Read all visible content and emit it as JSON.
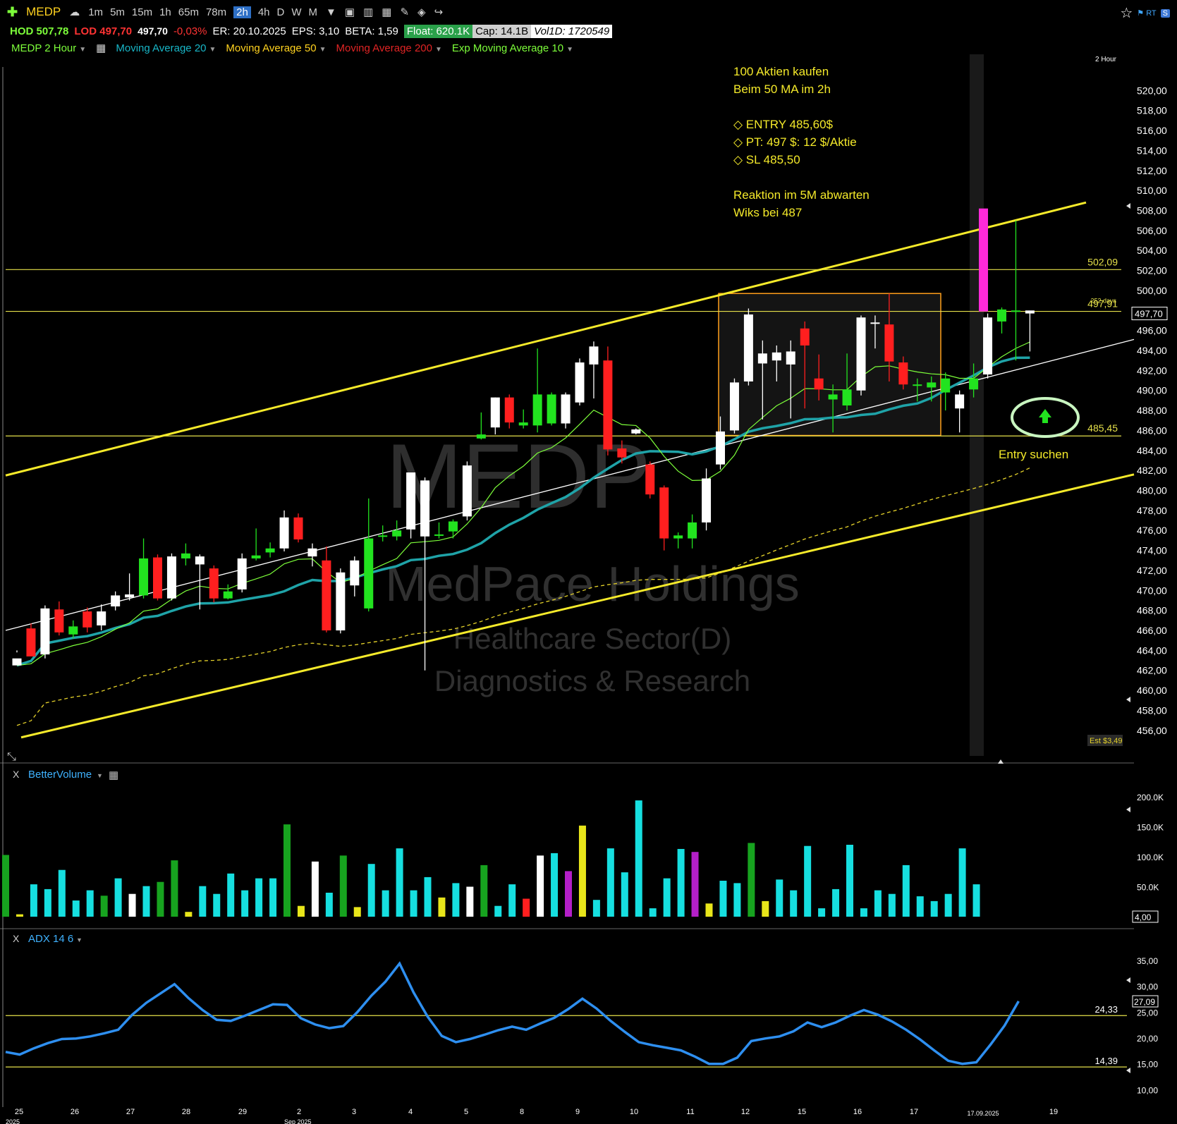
{
  "toolbar": {
    "symbol": "MEDP",
    "timeframes": [
      "1m",
      "5m",
      "15m",
      "1h",
      "65m",
      "78m",
      "2h",
      "4h",
      "D",
      "W",
      "M"
    ],
    "selected_timeframe": "2h",
    "hod": "HOD 507,78",
    "lod": "LOD 497,70",
    "last": "497,70",
    "change": "-0,03%",
    "er": "ER: 20.10.2025",
    "eps": "EPS: 3,10",
    "beta": "BETA: 1,59",
    "float": "Float: 620.1K",
    "cap": "Cap: 14.1B",
    "vol": "Vol1D: 1720549",
    "rt": "RT",
    "s_badge": "S"
  },
  "indicators": {
    "main": "MEDP 2 Hour",
    "ma20": "Moving Average 20",
    "ma50": "Moving Average 50",
    "ma200": "Moving Average 200",
    "ema10": "Exp Moving Average 10",
    "volume": "BetterVolume",
    "adx": "ADX 14 6",
    "close_x": "X"
  },
  "annotations": {
    "notes": [
      "100 Aktien kaufen",
      "Beim 50 MA im 2h",
      "",
      "◇ ENTRY 485,60$",
      "◇ PT: 497 $: 12 $/Aktie",
      "◇ SL 485,50",
      "",
      "Reaktion im 5M abwarten",
      "Wiks bei 487"
    ],
    "entry_label": "Entry suchen",
    "level_502": "502,09",
    "level_497": "497,91",
    "level_485": "485,45",
    "level_252": "252 days",
    "est": "Est $3,49",
    "tf_label": "2 Hour"
  },
  "watermark": {
    "ticker": "MEDP",
    "name": "MedPace Holdings",
    "sector": "Healthcare Sector(D)",
    "industry": "Diagnostics & Research"
  },
  "chart_data": [
    {
      "type": "candlestick",
      "title": "MEDP 2 Hour",
      "ylim": [
        455,
        522
      ],
      "y_ticks": [
        "520,00",
        "518,00",
        "516,00",
        "514,00",
        "512,00",
        "510,00",
        "508,00",
        "506,00",
        "504,00",
        "502,00",
        "500,00",
        "498,00",
        "496,00",
        "494,00",
        "492,00",
        "490,00",
        "488,00",
        "486,00",
        "484,00",
        "482,00",
        "480,00",
        "478,00",
        "476,00",
        "474,00",
        "472,00",
        "470,00",
        "468,00",
        "466,00",
        "464,00",
        "462,00",
        "460,00",
        "458,00",
        "456,00"
      ],
      "last_price": "497,70",
      "candles": [
        [
          463.2,
          462.5,
          464.0,
          463.8,
          "w"
        ],
        [
          466.2,
          463.4,
          466.7,
          463.9,
          "r"
        ],
        [
          463.6,
          468.2,
          468.5,
          463.2,
          "w"
        ],
        [
          468.1,
          465.8,
          468.9,
          465.5,
          "r"
        ],
        [
          465.6,
          466.4,
          467.0,
          465.2,
          "g"
        ],
        [
          467.9,
          466.3,
          468.3,
          465.8,
          "r"
        ],
        [
          466.5,
          467.9,
          468.6,
          466.0,
          "w"
        ],
        [
          468.4,
          469.5,
          469.9,
          468.0,
          "w"
        ],
        [
          469.3,
          469.6,
          471.7,
          469.0,
          "w"
        ],
        [
          469.5,
          473.2,
          475.2,
          469.2,
          "g"
        ],
        [
          473.3,
          469.2,
          473.6,
          469.0,
          "r"
        ],
        [
          469.2,
          473.4,
          473.7,
          469.0,
          "w"
        ],
        [
          473.2,
          473.7,
          474.7,
          472.5,
          "g"
        ],
        [
          473.4,
          472.6,
          473.6,
          468.1,
          "w"
        ],
        [
          472.2,
          469.2,
          472.5,
          468.8,
          "r"
        ],
        [
          469.2,
          469.9,
          470.6,
          469.1,
          "g"
        ],
        [
          470.1,
          473.2,
          473.7,
          469.8,
          "w"
        ],
        [
          473.5,
          473.2,
          476.2,
          473.0,
          "g"
        ],
        [
          474.2,
          473.8,
          474.8,
          473.3,
          "g"
        ],
        [
          474.2,
          477.3,
          478.0,
          473.9,
          "w"
        ],
        [
          477.3,
          475.1,
          477.7,
          474.8,
          "r"
        ],
        [
          474.2,
          473.4,
          474.7,
          472.4,
          "w"
        ],
        [
          473.0,
          466.0,
          474.4,
          465.8,
          "r"
        ],
        [
          471.8,
          466.0,
          472.2,
          465.7,
          "w"
        ],
        [
          470.5,
          473.0,
          473.4,
          469.4,
          "w"
        ],
        [
          468.2,
          475.2,
          479.2,
          467.9,
          "g"
        ],
        [
          475.5,
          475.5,
          476.5,
          474.9,
          "g"
        ],
        [
          475.4,
          476.0,
          477.0,
          475.0,
          "g"
        ],
        [
          476.1,
          481.8,
          481.8,
          475.2,
          "w"
        ],
        [
          481.0,
          475.4,
          481.3,
          462.0,
          "w"
        ],
        [
          475.6,
          475.6,
          476.8,
          475.2,
          "g"
        ],
        [
          475.9,
          476.9,
          477.1,
          475.2,
          "g"
        ],
        [
          477.4,
          482.5,
          482.9,
          477.0,
          "w"
        ],
        [
          485.2,
          485.6,
          487.8,
          485.1,
          "g"
        ],
        [
          486.3,
          489.3,
          489.3,
          485.6,
          "w"
        ],
        [
          489.3,
          486.8,
          489.6,
          486.2,
          "r"
        ],
        [
          486.5,
          486.8,
          488.1,
          486.2,
          "g"
        ],
        [
          486.5,
          489.6,
          494.2,
          485.8,
          "g"
        ],
        [
          489.6,
          486.7,
          489.8,
          486.5,
          "g"
        ],
        [
          486.7,
          489.6,
          489.8,
          486.2,
          "w"
        ],
        [
          488.8,
          492.8,
          493.2,
          488.5,
          "w"
        ],
        [
          492.6,
          494.4,
          494.9,
          489.2,
          "w"
        ],
        [
          493.0,
          484.1,
          494.4,
          483.5,
          "r"
        ],
        [
          484.2,
          483.3,
          485.0,
          482.7,
          "r"
        ],
        [
          485.7,
          486.1,
          486.2,
          485.6,
          "w"
        ],
        [
          482.6,
          479.6,
          482.9,
          479.2,
          "r"
        ],
        [
          480.3,
          475.2,
          480.5,
          474.0,
          "r"
        ],
        [
          475.5,
          475.2,
          475.8,
          474.2,
          "g"
        ],
        [
          475.2,
          476.8,
          477.6,
          474.2,
          "g"
        ],
        [
          476.8,
          481.2,
          482.2,
          476.0,
          "w"
        ],
        [
          482.6,
          485.9,
          487.4,
          482.1,
          "w"
        ],
        [
          486.0,
          490.8,
          491.2,
          485.7,
          "w"
        ],
        [
          490.9,
          497.6,
          498.2,
          490.5,
          "w"
        ],
        [
          493.7,
          492.7,
          495.0,
          487.1,
          "w"
        ],
        [
          493.0,
          493.8,
          494.5,
          490.9,
          "w"
        ],
        [
          493.9,
          492.6,
          495.0,
          487.2,
          "w"
        ],
        [
          496.2,
          494.5,
          496.9,
          488.2,
          "r"
        ],
        [
          491.2,
          490.1,
          493.6,
          489.0,
          "r"
        ],
        [
          489.1,
          489.6,
          490.6,
          485.8,
          "g"
        ],
        [
          488.5,
          490.1,
          493.7,
          488.0,
          "g"
        ],
        [
          490.0,
          497.3,
          497.5,
          489.5,
          "w"
        ],
        [
          496.7,
          496.8,
          497.5,
          494.2,
          "w"
        ],
        [
          496.6,
          492.9,
          499.7,
          490.9,
          "r"
        ],
        [
          492.8,
          490.6,
          493.4,
          490.1,
          "r"
        ],
        [
          490.5,
          490.6,
          491.2,
          488.9,
          "g"
        ],
        [
          490.3,
          490.8,
          491.4,
          488.9,
          "g"
        ],
        [
          489.8,
          491.2,
          491.8,
          488.0,
          "g"
        ],
        [
          488.2,
          489.6,
          490.0,
          485.8,
          "w"
        ],
        [
          490.1,
          491.2,
          492.7,
          489.3,
          "g"
        ],
        [
          491.6,
          497.3,
          497.7,
          491.2,
          "w"
        ],
        [
          496.9,
          498.1,
          498.3,
          495.7,
          "g"
        ],
        [
          497.9,
          498.0,
          507.0,
          493.0,
          "g"
        ],
        [
          498.0,
          497.7,
          497.9,
          493.9,
          "w"
        ]
      ],
      "x_labels": [
        "25",
        "26",
        "27",
        "28",
        "29",
        "2",
        "3",
        "4",
        "5",
        "8",
        "9",
        "10",
        "11",
        "12",
        "15",
        "16",
        "17",
        "17.09.2025",
        "19"
      ],
      "x_sublabels": [
        "2025",
        "Sep 2025"
      ]
    },
    {
      "type": "bar",
      "title": "BetterVolume",
      "ylim": [
        0,
        200
      ],
      "y_ticks": [
        "200.0K",
        "150.0K",
        "100.0K",
        "50.0K"
      ],
      "y_marker": "4,00",
      "values": [
        103,
        4,
        54,
        46,
        78,
        27,
        44,
        35,
        64,
        38,
        51,
        58,
        94,
        8,
        51,
        38,
        72,
        44,
        64,
        64,
        154,
        18,
        92,
        40,
        102,
        16,
        88,
        44,
        114,
        44,
        66,
        32,
        56,
        50,
        86,
        18,
        54,
        30,
        102,
        106,
        76,
        152,
        28,
        114,
        74,
        194,
        14,
        64,
        113,
        108,
        22,
        60,
        56,
        123,
        26,
        62,
        44,
        118,
        14,
        46,
        120,
        14,
        44,
        38,
        86,
        34,
        26,
        38,
        114,
        54
      ],
      "colors": [
        "g",
        "y",
        "c",
        "c",
        "c",
        "c",
        "c",
        "g",
        "c",
        "w",
        "c",
        "g",
        "g",
        "y",
        "c",
        "c",
        "c",
        "c",
        "c",
        "c",
        "g",
        "y",
        "w",
        "c",
        "g",
        "y",
        "c",
        "c",
        "c",
        "c",
        "c",
        "y",
        "c",
        "w",
        "g",
        "c",
        "c",
        "r",
        "w",
        "c",
        "m",
        "y",
        "c",
        "c",
        "c",
        "c",
        "c",
        "c",
        "c",
        "m",
        "y",
        "c",
        "c",
        "g",
        "y",
        "c",
        "c",
        "c",
        "c",
        "c",
        "c",
        "c",
        "c",
        "c",
        "c",
        "c",
        "c",
        "c",
        "c",
        "c"
      ]
    },
    {
      "type": "line",
      "title": "ADX 14 6",
      "ylim": [
        8,
        38
      ],
      "y_ticks": [
        "35,00",
        "30,00",
        "25,00",
        "20,00",
        "15,00",
        "10,00"
      ],
      "levels": [
        "24,33",
        "14,39"
      ],
      "last_value": "27,09",
      "values": [
        17.3,
        16.8,
        18.0,
        19.0,
        19.8,
        19.9,
        20.3,
        20.9,
        21.6,
        24.5,
        26.8,
        28.6,
        30.4,
        27.7,
        25.4,
        23.5,
        23.3,
        24.3,
        25.4,
        26.5,
        26.4,
        23.8,
        22.6,
        21.9,
        22.3,
        25.0,
        28.2,
        30.9,
        34.4,
        28.8,
        24.1,
        20.4,
        19.2,
        19.8,
        20.6,
        21.5,
        22.2,
        21.6,
        22.8,
        23.9,
        25.6,
        27.6,
        25.7,
        23.3,
        21.2,
        19.2,
        18.6,
        18.1,
        17.6,
        16.4,
        15.0,
        15.0,
        16.2,
        19.4,
        19.9,
        20.3,
        21.3,
        23.0,
        22.1,
        23.0,
        24.3,
        25.4,
        24.5,
        23.2,
        21.6,
        19.7,
        17.6,
        15.6,
        15.0,
        15.3,
        18.7,
        22.4,
        27.1
      ]
    }
  ]
}
